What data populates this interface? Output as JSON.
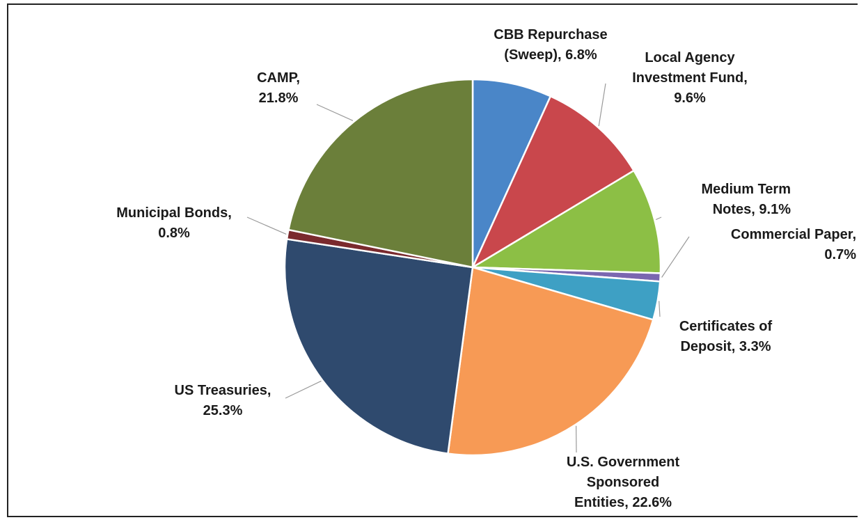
{
  "chart_data": {
    "type": "pie",
    "title": "",
    "slices": [
      {
        "label": "CBB Repurchase (Sweep)",
        "value": 6.8,
        "color": "#4a86c8",
        "text": [
          "CBB Repurchase",
          "(Sweep), 6.8%"
        ]
      },
      {
        "label": "Local Agency Investment Fund",
        "value": 9.6,
        "color": "#c9474c",
        "text": [
          "Local Agency",
          "Investment Fund,",
          "9.6%"
        ]
      },
      {
        "label": "Medium Term Notes",
        "value": 9.1,
        "color": "#8cbf45",
        "text": [
          "Medium Term",
          "Notes, 9.1%"
        ]
      },
      {
        "label": "Commercial Paper",
        "value": 0.7,
        "color": "#7a66b0",
        "text": [
          "Commercial Paper,",
          "0.7%"
        ]
      },
      {
        "label": "Certificates of Deposit",
        "value": 3.3,
        "color": "#3ea0c4",
        "text": [
          "Certificates of",
          "Deposit, 3.3%"
        ]
      },
      {
        "label": "U.S. Government Sponsored Entities",
        "value": 22.6,
        "color": "#f79a55",
        "text": [
          "U.S. Government",
          "Sponsored",
          "Entities, 22.6%"
        ]
      },
      {
        "label": "US Treasuries",
        "value": 25.3,
        "color": "#2f4a6e",
        "text": [
          "US Treasuries,",
          "25.3%"
        ]
      },
      {
        "label": "Municipal Bonds",
        "value": 0.8,
        "color": "#7a2a2e",
        "text": [
          "Municipal Bonds,",
          "0.8%"
        ]
      },
      {
        "label": "CAMP",
        "value": 21.8,
        "color": "#6b7f3a",
        "text": [
          "CAMP,",
          "21.8%"
        ]
      }
    ]
  }
}
